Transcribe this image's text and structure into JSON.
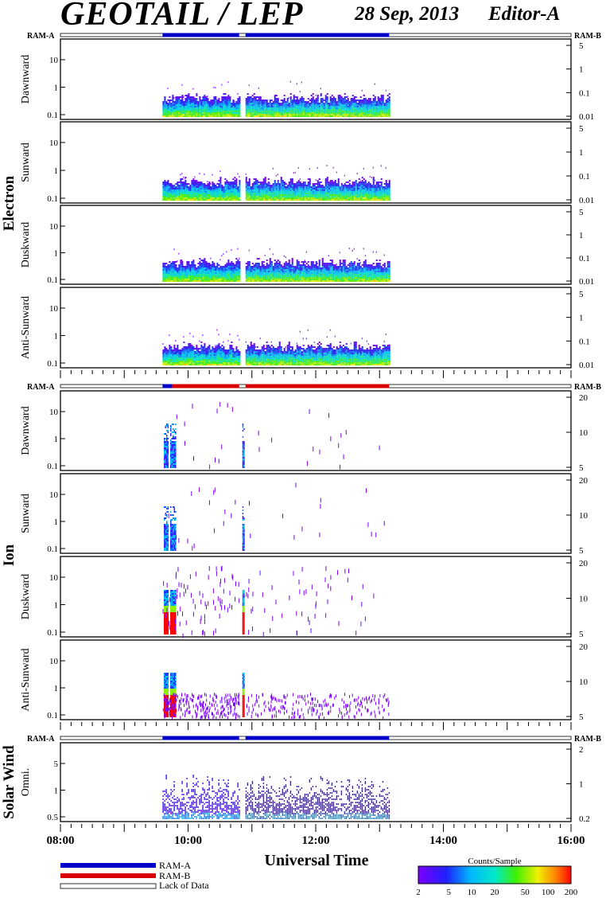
{
  "header": {
    "title": "GEOTAIL / LEP",
    "date": "28 Sep, 2013",
    "editor": "Editor-A"
  },
  "groups": [
    {
      "label": "Electron",
      "ram_left": "RAM-A",
      "ram_right": "RAM-B",
      "panels": [
        "Dawnward",
        "Sunward",
        "Duskward",
        "Anti-Sunward"
      ]
    },
    {
      "label": "Ion",
      "ram_left": "RAM-A",
      "ram_right": "RAM-B",
      "panels": [
        "Dawnward",
        "Sunward",
        "Duskward",
        "Anti-Sunward"
      ]
    },
    {
      "label": "Solar Wind",
      "ram_left": "RAM-A",
      "ram_right": "RAM-B",
      "panels": [
        "Omni."
      ]
    }
  ],
  "x_axis": {
    "label": "Universal Time",
    "ticks": [
      "08:00",
      "10:00",
      "12:00",
      "14:00",
      "16:00"
    ]
  },
  "legend": {
    "ram_a": "RAM-A",
    "ram_b": "RAM-B",
    "lack": "Lack of Data"
  },
  "colorbar": {
    "title": "Counts/Sample",
    "ticks": [
      "2",
      "5",
      "10",
      "20",
      "50",
      "100",
      "200"
    ]
  },
  "colors": {
    "ram_a": "#0000c8",
    "ram_b": "#d80000"
  },
  "chart_data": {
    "type": "heatmap",
    "x_range_hours": [
      8,
      16
    ],
    "x_ticks": [
      "08:00",
      "10:00",
      "12:00",
      "14:00",
      "16:00"
    ],
    "data_coverage_hours": [
      [
        9.6,
        10.8
      ],
      [
        10.9,
        13.15
      ]
    ],
    "panels": [
      {
        "group": "Electron",
        "name": "Dawnward",
        "left_ticks": [
          "10",
          "1",
          "0.1"
        ],
        "right_ticks": [
          "5",
          "1",
          "0.1",
          "0.01"
        ],
        "style": "electron",
        "ram_status": [
          [
            "a",
            9.6,
            10.8
          ],
          [
            "a",
            10.9,
            13.15
          ]
        ]
      },
      {
        "group": "Electron",
        "name": "Sunward",
        "left_ticks": [
          "10",
          "1",
          "0.1"
        ],
        "right_ticks": [
          "5",
          "1",
          "0.1",
          "0.01"
        ],
        "style": "electron"
      },
      {
        "group": "Electron",
        "name": "Duskward",
        "left_ticks": [
          "10",
          "1",
          "0.1"
        ],
        "right_ticks": [
          "5",
          "1",
          "0.1",
          "0.01"
        ],
        "style": "electron"
      },
      {
        "group": "Electron",
        "name": "Anti-Sunward",
        "left_ticks": [
          "10",
          "1",
          "0.1"
        ],
        "right_ticks": [
          "5",
          "1",
          "0.1",
          "0.01"
        ],
        "style": "electron"
      },
      {
        "group": "Ion",
        "name": "Dawnward",
        "left_ticks": [
          "10",
          "1",
          "0.1"
        ],
        "right_ticks": [
          "20",
          "10",
          "5"
        ],
        "style": "ion",
        "ram_status": [
          [
            "a",
            9.6,
            9.75
          ],
          [
            "b",
            9.75,
            10.8
          ],
          [
            "b",
            10.9,
            13.15
          ]
        ]
      },
      {
        "group": "Ion",
        "name": "Sunward",
        "left_ticks": [
          "10",
          "1",
          "0.1"
        ],
        "right_ticks": [
          "20",
          "10",
          "5"
        ],
        "style": "ion"
      },
      {
        "group": "Ion",
        "name": "Duskward",
        "left_ticks": [
          "10",
          "1",
          "0.1"
        ],
        "right_ticks": [
          "20",
          "10",
          "5"
        ],
        "style": "ion-dusk"
      },
      {
        "group": "Ion",
        "name": "Anti-Sunward",
        "left_ticks": [
          "10",
          "1",
          "0.1"
        ],
        "right_ticks": [
          "20",
          "10",
          "5"
        ],
        "style": "ion-anti"
      },
      {
        "group": "Solar Wind",
        "name": "Omni.",
        "left_ticks": [
          "5",
          "1",
          "0.5"
        ],
        "right_ticks": [
          "2",
          "1",
          "0.2"
        ],
        "style": "solar",
        "ram_status": [
          [
            "a",
            9.6,
            10.8
          ],
          [
            "a",
            10.9,
            13.15
          ]
        ]
      }
    ],
    "colorbar": {
      "label": "Counts/Sample",
      "scale": "log",
      "range": [
        2,
        200
      ],
      "ticks": [
        "2",
        "5",
        "10",
        "20",
        "50",
        "100",
        "200"
      ]
    }
  }
}
